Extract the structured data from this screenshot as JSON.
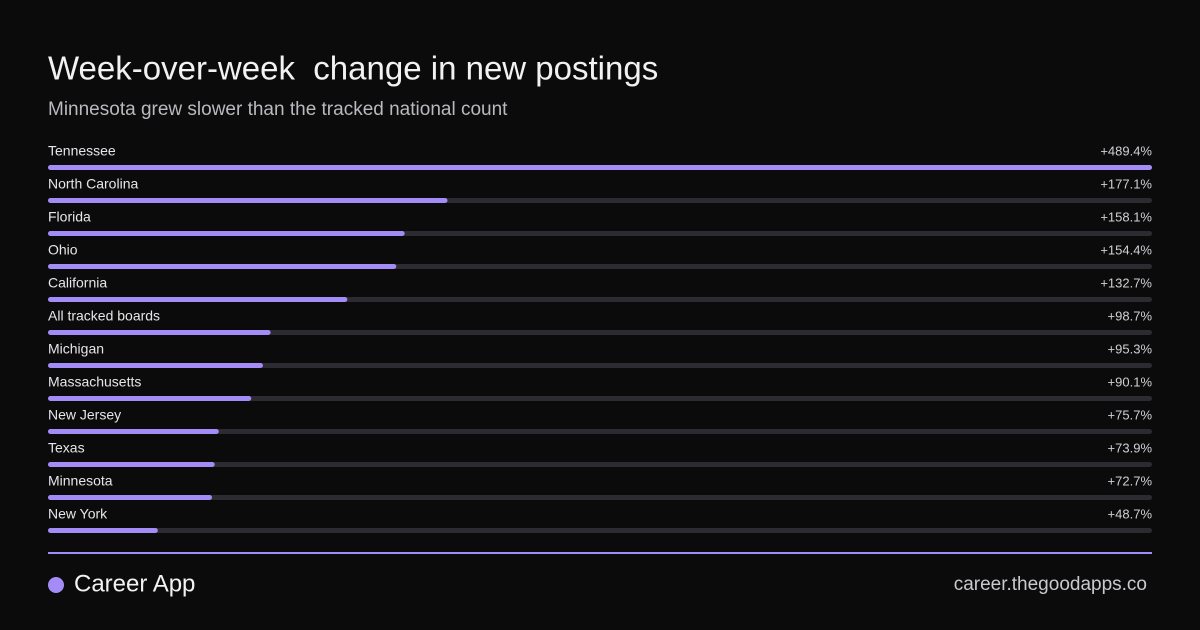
{
  "chart_data": {
    "type": "bar",
    "orientation": "horizontal",
    "title": "Week-over-week  change in new postings",
    "subtitle": "Minnesota grew slower than the tracked national count",
    "categories": [
      "Tennessee",
      "North Carolina",
      "Florida",
      "Ohio",
      "California",
      "All tracked boards",
      "Michigan",
      "Massachusetts",
      "New Jersey",
      "Texas",
      "Minnesota",
      "New York"
    ],
    "values": [
      489.4,
      177.1,
      158.1,
      154.4,
      132.7,
      98.7,
      95.3,
      90.1,
      75.7,
      73.9,
      72.7,
      48.7
    ],
    "value_labels": [
      "+489.4%",
      "+177.1%",
      "+158.1%",
      "+154.4%",
      "+132.7%",
      "+98.7%",
      "+95.3%",
      "+90.1%",
      "+75.7%",
      "+73.9%",
      "+72.7%",
      "+48.7%"
    ],
    "xlim": [
      0,
      489.4
    ],
    "color": "#a48cf7",
    "track_color": "#2b2b31"
  },
  "footer": {
    "brand": "Career App",
    "url": "career.thegoodapps.co"
  }
}
